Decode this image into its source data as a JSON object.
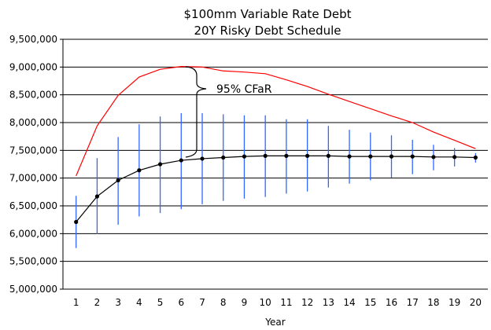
{
  "chart_data": {
    "type": "line",
    "title": [
      "$100mm Variable Rate Debt",
      "20Y Risky Debt Schedule"
    ],
    "xlabel": "Year",
    "ylabel": "",
    "ylim": [
      5000000,
      9500000
    ],
    "yticks": [
      "5,000,000",
      "5,500,000",
      "6,000,000",
      "6,500,000",
      "7,000,000",
      "7,500,000",
      "8,000,000",
      "8,500,000",
      "9,000,000",
      "9,500,000"
    ],
    "ytick_values": [
      5000000,
      5500000,
      6000000,
      6500000,
      7000000,
      7500000,
      8000000,
      8500000,
      9000000,
      9500000
    ],
    "x": [
      1,
      2,
      3,
      4,
      5,
      6,
      7,
      8,
      9,
      10,
      11,
      12,
      13,
      14,
      15,
      16,
      17,
      18,
      19,
      20
    ],
    "grid": "horizontal",
    "series": [
      {
        "type": "line-markers",
        "color": "#000000",
        "values": [
          6210000,
          6670000,
          6960000,
          7140000,
          7250000,
          7320000,
          7350000,
          7370000,
          7390000,
          7400000,
          7400000,
          7400000,
          7400000,
          7390000,
          7390000,
          7390000,
          7390000,
          7380000,
          7380000,
          7370000
        ]
      },
      {
        "type": "line",
        "color": "#ff0000",
        "values": [
          7040000,
          7940000,
          8490000,
          8820000,
          8960000,
          9010000,
          9000000,
          8930000,
          8910000,
          8880000,
          8770000,
          8650000,
          8510000,
          8380000,
          8250000,
          8120000,
          8000000,
          7830000,
          7680000,
          7530000
        ]
      },
      {
        "type": "range-bars",
        "color": "#3366ff",
        "low": [
          5740000,
          5990000,
          6160000,
          6310000,
          6370000,
          6440000,
          6530000,
          6590000,
          6630000,
          6660000,
          6720000,
          6760000,
          6830000,
          6900000,
          6960000,
          7010000,
          7070000,
          7140000,
          7210000,
          7280000
        ],
        "high": [
          6680000,
          7360000,
          7740000,
          7970000,
          8110000,
          8170000,
          8170000,
          8150000,
          8130000,
          8130000,
          8060000,
          8060000,
          7940000,
          7870000,
          7820000,
          7770000,
          7690000,
          7600000,
          7540000,
          7450000
        ]
      }
    ],
    "annotations": [
      {
        "text": "95% CFaR",
        "between_series_at_year": 6
      }
    ]
  }
}
